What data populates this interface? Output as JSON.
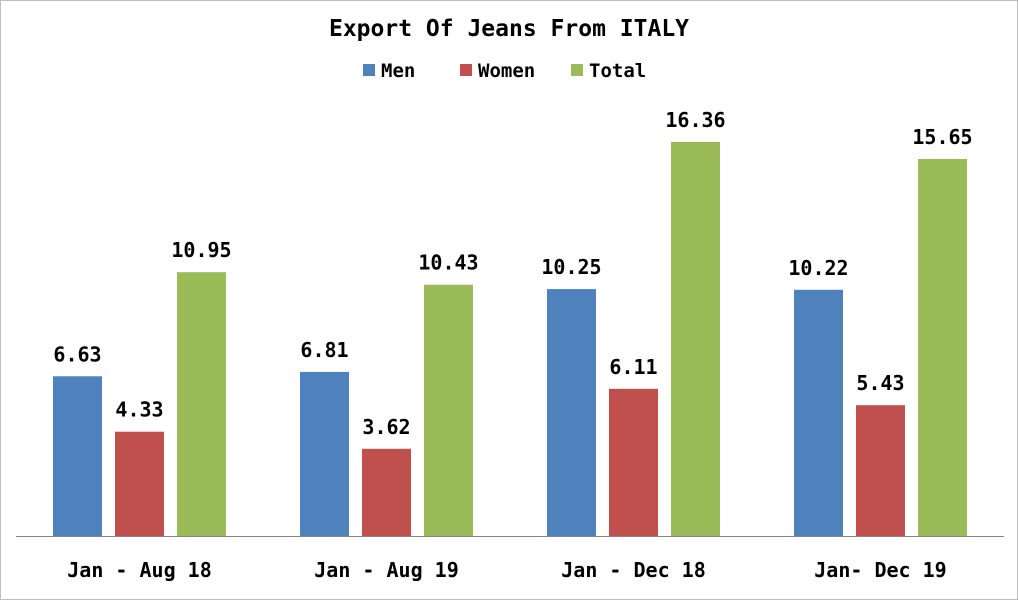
{
  "chart_data": {
    "type": "bar",
    "title": "Export Of Jeans From ITALY",
    "categories": [
      "Jan - Aug 18",
      "Jan - Aug 19",
      "Jan - Dec 18",
      "Jan- Dec 19"
    ],
    "series": [
      {
        "name": "Men",
        "color": "#4f81bd",
        "values": [
          6.63,
          6.81,
          10.25,
          10.22
        ]
      },
      {
        "name": "Women",
        "color": "#c0504d",
        "values": [
          4.33,
          3.62,
          6.11,
          5.43
        ]
      },
      {
        "name": "Total",
        "color": "#9bbb59",
        "values": [
          10.95,
          10.43,
          16.36,
          15.65
        ]
      }
    ],
    "xlabel": "",
    "ylabel": "",
    "ylim": [
      0,
      18
    ],
    "legend_position": "top",
    "grid": false,
    "data_labels": true
  }
}
